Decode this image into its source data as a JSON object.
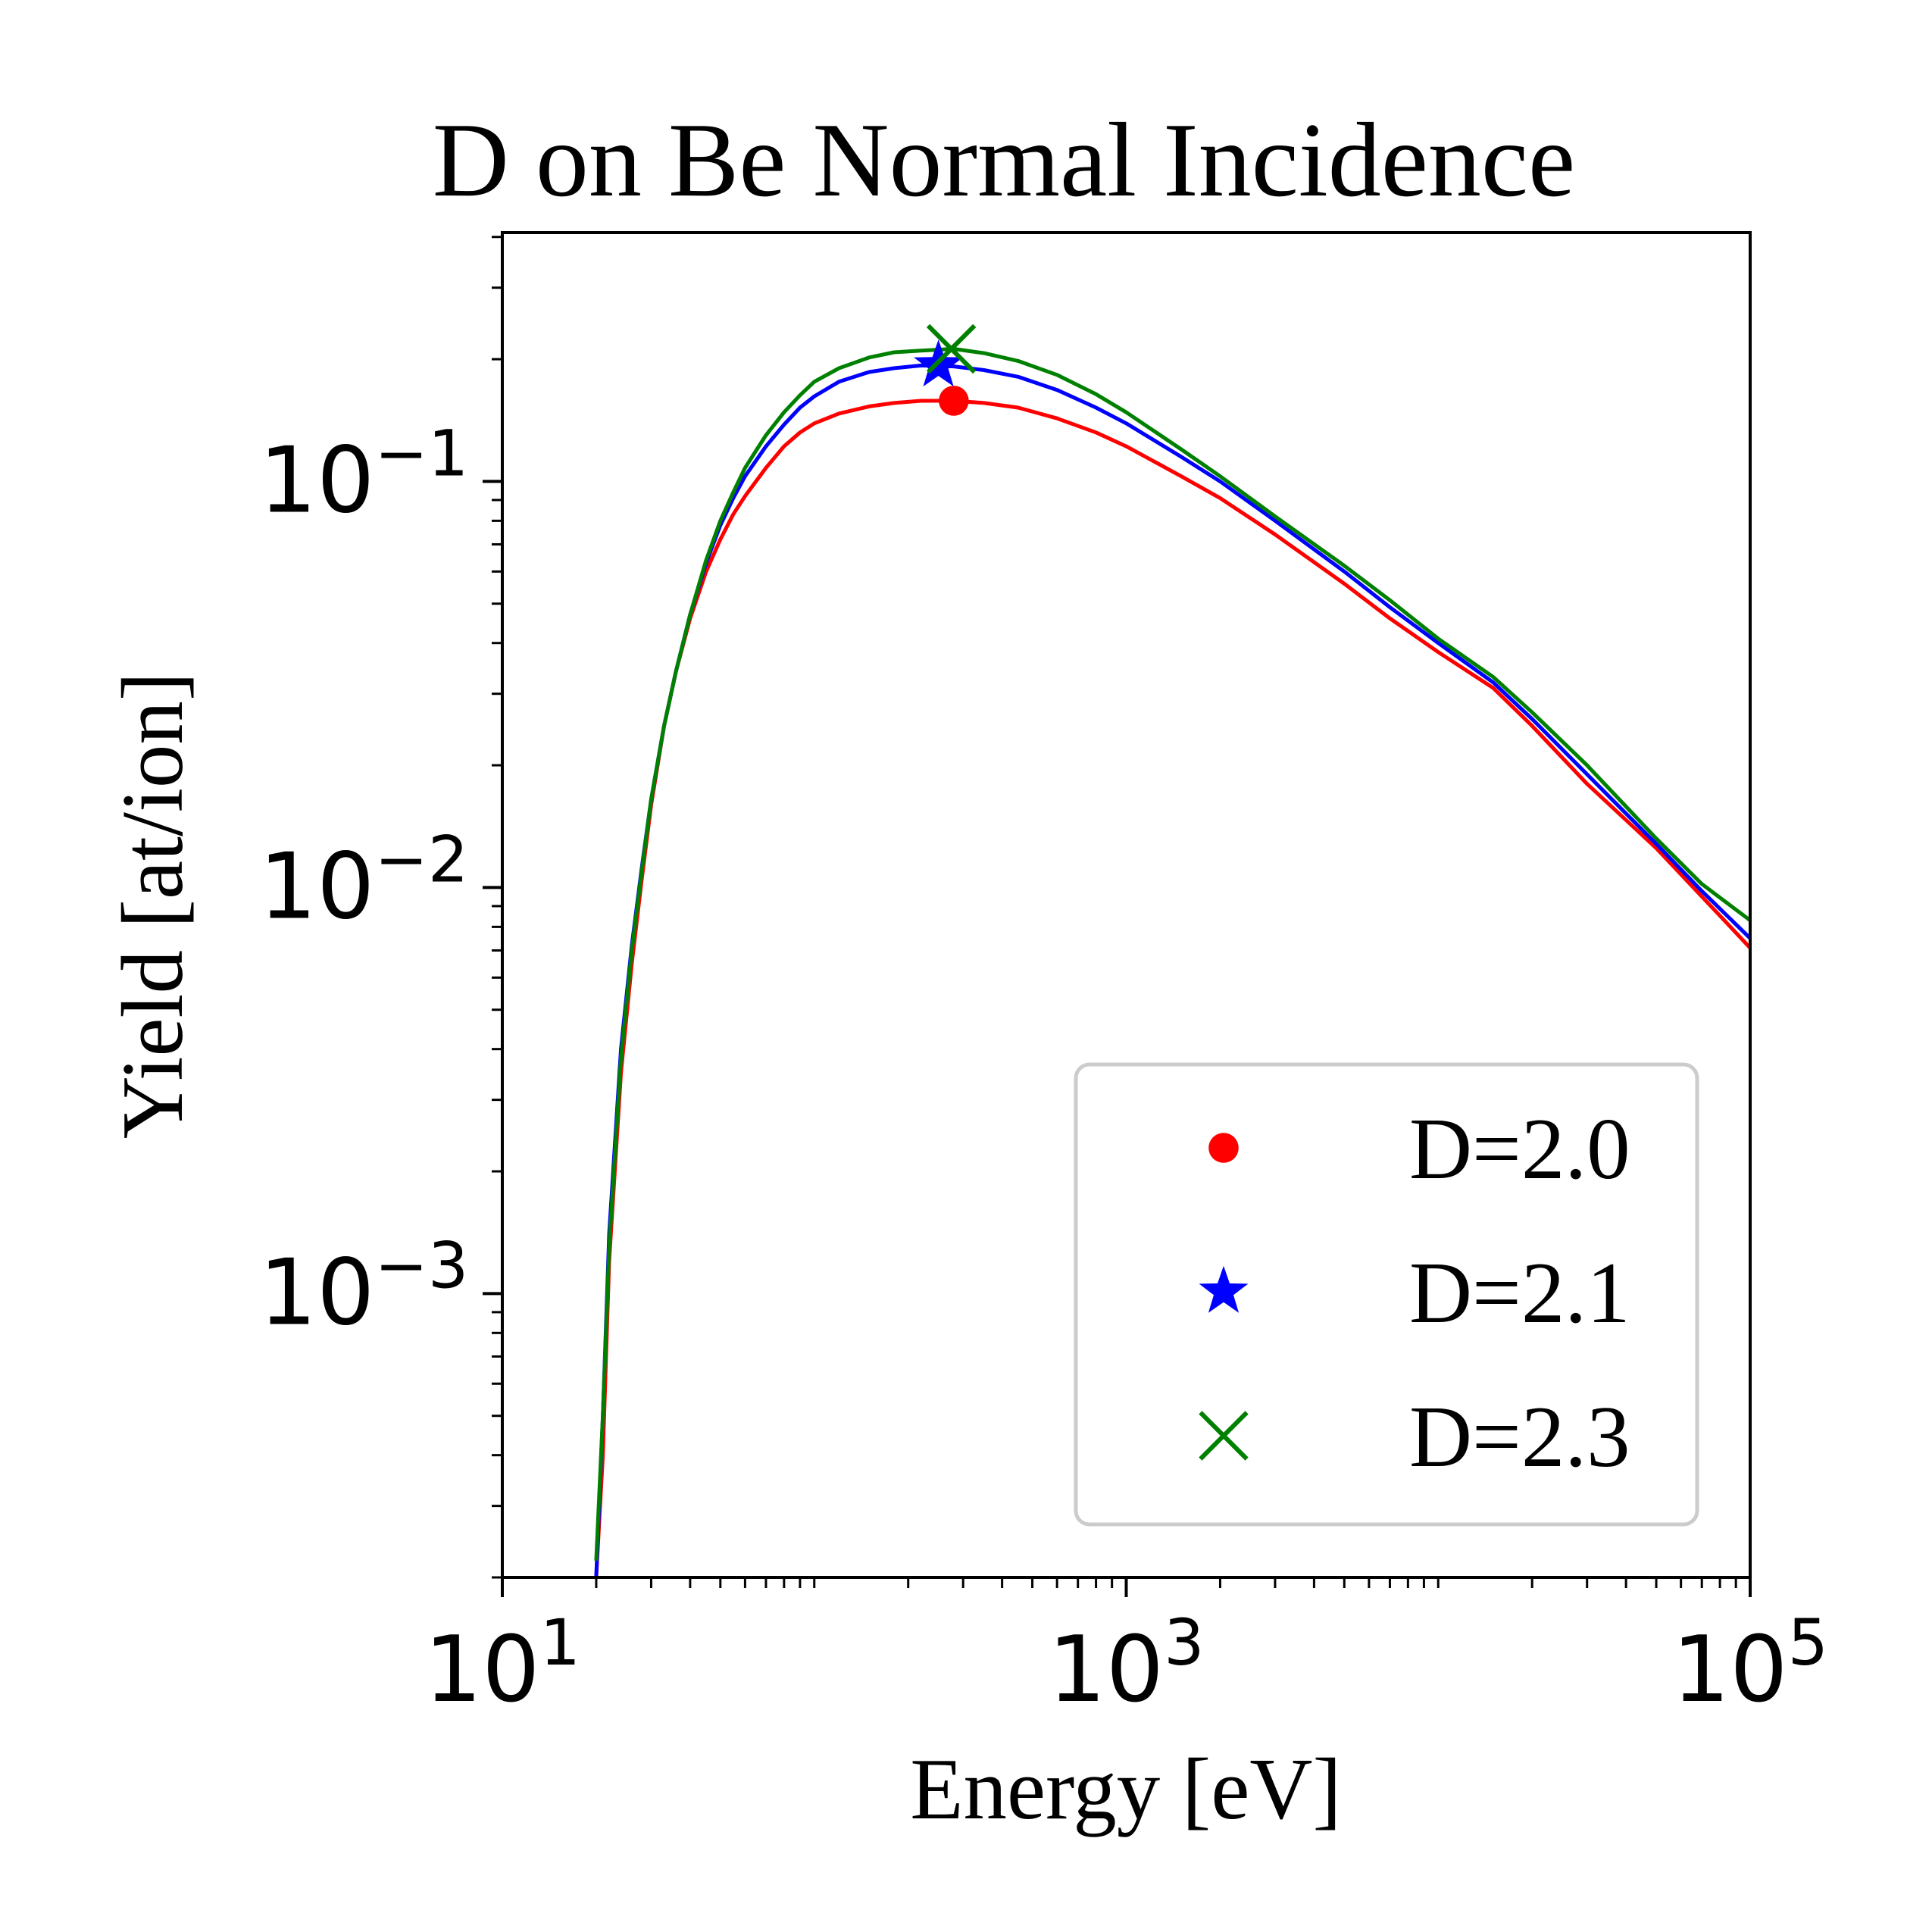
{
  "chart_data": {
    "type": "line",
    "title": "D on Be Normal Incidence",
    "xlabel": "Energy [eV]",
    "ylabel": "Yield [at/ion]",
    "xscale": "log",
    "yscale": "log",
    "xlim": [
      10,
      100000
    ],
    "ylim": [
      0.0002,
      0.41
    ],
    "x_ticks": [
      {
        "value": 10,
        "base": "10",
        "exp": "1"
      },
      {
        "value": 1000,
        "base": "10",
        "exp": "3"
      },
      {
        "value": 100000,
        "base": "10",
        "exp": "5"
      }
    ],
    "y_ticks": [
      {
        "value": 0.1,
        "base": "10",
        "exp": "−1"
      },
      {
        "value": 0.01,
        "base": "10",
        "exp": "−2"
      },
      {
        "value": 0.001,
        "base": "10",
        "exp": "−3"
      }
    ],
    "grid": false,
    "legend_position": "lower-right",
    "series": [
      {
        "name": "D=2.0",
        "color": "#ff0000",
        "marker": "circle",
        "peak": {
          "x": 280,
          "y": 0.158
        },
        "x": [
          20,
          21,
          22,
          24,
          26,
          28,
          30,
          33,
          36,
          40,
          45,
          50,
          55,
          60,
          70,
          80,
          90,
          100,
          120,
          150,
          180,
          220,
          280,
          350,
          450,
          600,
          800,
          1000,
          1500,
          2000,
          3000,
          5000,
          7000,
          10000,
          15000,
          20000,
          30000,
          50000,
          70000,
          100000
        ],
        "y": [
          0.0002,
          0.0004,
          0.0012,
          0.0035,
          0.0065,
          0.0105,
          0.016,
          0.025,
          0.034,
          0.046,
          0.06,
          0.072,
          0.083,
          0.092,
          0.108,
          0.122,
          0.132,
          0.139,
          0.147,
          0.153,
          0.156,
          0.158,
          0.158,
          0.156,
          0.152,
          0.143,
          0.132,
          0.122,
          0.103,
          0.091,
          0.074,
          0.056,
          0.046,
          0.038,
          0.031,
          0.025,
          0.018,
          0.0125,
          0.0095,
          0.0071
        ]
      },
      {
        "name": "D=2.1",
        "color": "#0000ff",
        "marker": "star",
        "peak": {
          "x": 250,
          "y": 0.193
        },
        "x": [
          20,
          21,
          22,
          24,
          26,
          28,
          30,
          33,
          36,
          40,
          45,
          50,
          55,
          60,
          70,
          80,
          90,
          100,
          120,
          150,
          180,
          220,
          280,
          350,
          450,
          600,
          800,
          1000,
          1500,
          2000,
          3000,
          5000,
          7000,
          10000,
          15000,
          20000,
          30000,
          50000,
          70000,
          100000
        ],
        "y": [
          0.0002,
          0.0005,
          0.0014,
          0.004,
          0.0072,
          0.0112,
          0.0165,
          0.025,
          0.034,
          0.047,
          0.063,
          0.078,
          0.091,
          0.103,
          0.122,
          0.138,
          0.152,
          0.162,
          0.176,
          0.186,
          0.19,
          0.193,
          0.192,
          0.188,
          0.181,
          0.168,
          0.152,
          0.139,
          0.115,
          0.1,
          0.08,
          0.06,
          0.049,
          0.04,
          0.032,
          0.026,
          0.019,
          0.0128,
          0.0098,
          0.0075
        ]
      },
      {
        "name": "D=2.3",
        "color": "#008000",
        "marker": "x",
        "peak": {
          "x": 275,
          "y": 0.212
        },
        "x": [
          20,
          21,
          22,
          24,
          26,
          28,
          30,
          33,
          36,
          40,
          45,
          50,
          55,
          60,
          70,
          80,
          90,
          100,
          120,
          150,
          180,
          220,
          280,
          350,
          450,
          600,
          800,
          1000,
          1500,
          2000,
          3000,
          5000,
          7000,
          10000,
          15000,
          20000,
          30000,
          50000,
          70000,
          100000
        ],
        "y": [
          0.00022,
          0.0005,
          0.0013,
          0.0038,
          0.007,
          0.011,
          0.0165,
          0.025,
          0.034,
          0.047,
          0.064,
          0.08,
          0.094,
          0.108,
          0.13,
          0.148,
          0.163,
          0.176,
          0.19,
          0.202,
          0.208,
          0.21,
          0.212,
          0.207,
          0.198,
          0.183,
          0.164,
          0.148,
          0.12,
          0.103,
          0.082,
          0.062,
          0.051,
          0.041,
          0.033,
          0.027,
          0.02,
          0.0132,
          0.0102,
          0.0083
        ]
      }
    ]
  }
}
